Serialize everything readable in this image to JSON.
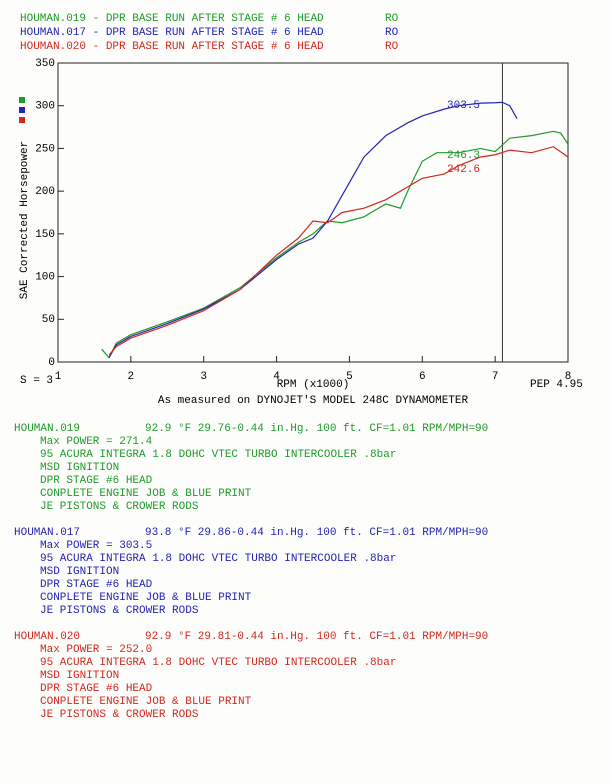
{
  "chart_data": {
    "type": "line",
    "y_label": "SAE Corrected Horsepower",
    "x_label": "RPM (x1000)",
    "smoothing": "S = 3",
    "pep": "PEP 4.95",
    "caption": "As measured on DYNOJET'S MODEL 248C DYNAMOMETER",
    "xlim": [
      1,
      8
    ],
    "xticks": [
      1,
      2,
      3,
      4,
      5,
      6,
      7,
      8
    ],
    "ylim": [
      0,
      350
    ],
    "yticks": [
      0,
      50,
      100,
      150,
      200,
      250,
      300,
      350
    ],
    "cursor_x": 7.1,
    "series": [
      {
        "name": "HOUMAN.019 - DPR BASE RUN AFTER STAGE # 6 HEAD",
        "tag": "RO",
        "color": "#1e9a2a",
        "marker": "246.3",
        "x": [
          1.6,
          1.7,
          1.8,
          2,
          2.5,
          3,
          3.5,
          4,
          4.3,
          4.5,
          4.7,
          4.9,
          5.2,
          5.5,
          5.7,
          5.8,
          6,
          6.2,
          6.5,
          6.8,
          7,
          7.2,
          7.5,
          7.8,
          7.9,
          8
        ],
        "values": [
          15,
          5,
          22,
          32,
          47,
          63,
          87,
          122,
          140,
          150,
          165,
          163,
          170,
          185,
          180,
          200,
          235,
          245,
          245,
          250,
          246.3,
          262,
          265,
          270,
          268,
          255
        ]
      },
      {
        "name": "HOUMAN.017 - DPR BASE RUN AFTER STAGE # 6 HEAD",
        "tag": "RO",
        "color": "#2323b4",
        "marker": "303.5",
        "x": [
          1.7,
          1.8,
          2,
          2.5,
          3,
          3.5,
          4,
          4.3,
          4.5,
          4.7,
          5,
          5.2,
          5.5,
          5.8,
          6,
          6.3,
          6.5,
          6.8,
          7,
          7.1,
          7.2,
          7.3
        ],
        "values": [
          5,
          20,
          30,
          45,
          62,
          85,
          120,
          138,
          145,
          165,
          210,
          240,
          265,
          280,
          288,
          296,
          300,
          303,
          303.5,
          304,
          300,
          285
        ]
      },
      {
        "name": "HOUMAN.020 - DPR BASE RUN AFTER STAGE # 6 HEAD",
        "tag": "RO",
        "color": "#d2281e",
        "marker": "242.6",
        "x": [
          1.7,
          1.8,
          2,
          2.5,
          3,
          3.5,
          4,
          4.3,
          4.5,
          4.7,
          4.9,
          5.2,
          5.5,
          5.8,
          6,
          6.3,
          6.5,
          6.8,
          7,
          7.2,
          7.5,
          7.8,
          8
        ],
        "values": [
          8,
          18,
          28,
          43,
          60,
          85,
          125,
          145,
          165,
          163,
          175,
          180,
          190,
          205,
          215,
          220,
          230,
          240,
          242.6,
          248,
          245,
          252,
          240
        ]
      }
    ]
  },
  "runs": [
    {
      "name": "HOUMAN.019",
      "color": "#1e9a2a",
      "conditions": "92.9 °F   29.76-0.44 in.Hg.   100 ft.   CF=1.01   RPM/MPH=90",
      "lines": [
        "Max POWER = 271.4",
        "95 ACURA INTEGRA 1.8 DOHC VTEC TURBO INTERCOOLER      .8bar",
        "MSD IGNITION",
        "DPR STAGE #6 HEAD",
        "CONPLETE ENGINE JOB & BLUE PRINT",
        "JE PISTONS & CROWER RODS"
      ]
    },
    {
      "name": "HOUMAN.017",
      "color": "#2323b4",
      "conditions": "93.8 °F   29.86-0.44 in.Hg.   100 ft.   CF=1.01   RPM/MPH=90",
      "lines": [
        "Max POWER = 303.5",
        "95 ACURA INTEGRA 1.8 DOHC VTEC TURBO INTERCOOLER      .8bar",
        "MSD IGNITION",
        "DPR STAGE #6 HEAD",
        "CONPLETE ENGINE JOB & BLUE PRINT",
        "JE PISTONS & CROWER RODS"
      ]
    },
    {
      "name": "HOUMAN.020",
      "color": "#d2281e",
      "conditions": "92.9 °F   29.81-0.44 in.Hg.   100 ft.   CF=1.01   RPM/MPH=90",
      "lines": [
        "Max POWER = 252.0",
        "95 ACURA INTEGRA 1.8 DOHC VTEC TURBO INTERCOOLER      .8bar",
        "MSD IGNITION",
        "DPR STAGE #6 HEAD",
        "CONPLETE ENGINE JOB & BLUE PRINT",
        "JE PISTONS & CROWER RODS"
      ]
    }
  ]
}
